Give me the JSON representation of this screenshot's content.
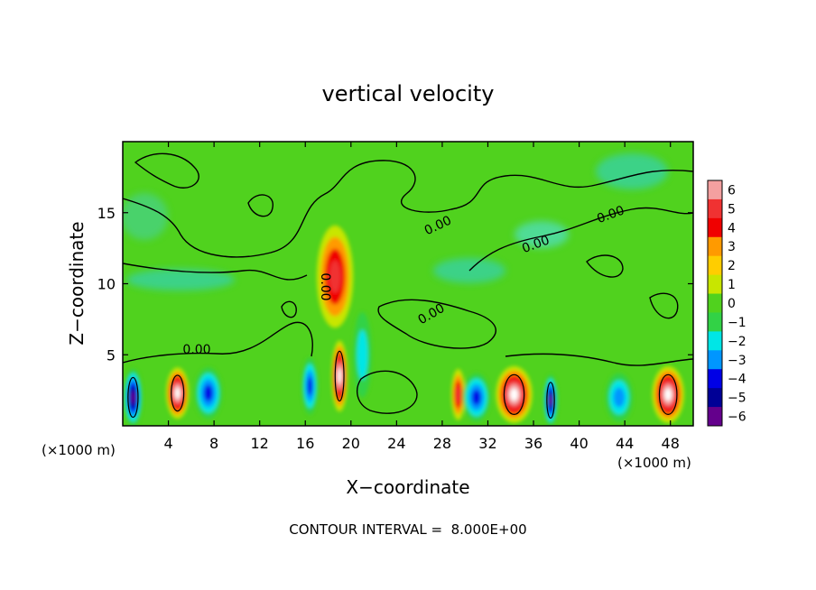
{
  "chart_data": {
    "type": "heatmap",
    "title": "vertical velocity",
    "xlabel": "X−coordinate",
    "ylabel": "Z−coordinate",
    "x_unit_left": "(×1000 m)",
    "x_unit_right": "(×1000 m)",
    "xlim": [
      0,
      50
    ],
    "ylim": [
      0,
      20
    ],
    "x_ticks": [
      4,
      8,
      12,
      16,
      20,
      24,
      28,
      32,
      36,
      40,
      44,
      48
    ],
    "y_ticks": [
      5,
      10,
      15
    ],
    "colorbar": {
      "levels": [
        6,
        5,
        4,
        3,
        2,
        1,
        0,
        -1,
        -2,
        -3,
        -4,
        -5,
        -6
      ],
      "labels": [
        "6",
        "5",
        "4",
        "3",
        "2",
        "1",
        "0",
        "−1",
        "−2",
        "−3",
        "−4",
        "−5",
        "−6"
      ],
      "colors": [
        "#f4a0a0",
        "#f03232",
        "#f00000",
        "#ff9a00",
        "#ffcd00",
        "#c8e600",
        "#50d21e",
        "#32d246",
        "#00e6e6",
        "#0096ff",
        "#0000e6",
        "#000096",
        "#64008c"
      ]
    },
    "contour_labels": [
      "0.00",
      "0.00",
      "0.00",
      "0.00",
      "0.00",
      "0.00"
    ],
    "contour_interval_text": "CONTOUR INTERVAL =  8.000E+00",
    "features": [
      {
        "kind": "updraft",
        "x": 19,
        "z": 3.5,
        "rx": 0.7,
        "rz": 2.5,
        "value": 6
      },
      {
        "kind": "updraft",
        "x": 18.6,
        "z": 10.5,
        "rx": 1.6,
        "rz": 3.6,
        "value": 4
      },
      {
        "kind": "updraft",
        "x": 4.8,
        "z": 2.3,
        "rx": 1.0,
        "rz": 1.8,
        "value": 6
      },
      {
        "kind": "updraft",
        "x": 34.3,
        "z": 2.2,
        "rx": 1.6,
        "rz": 2.0,
        "value": 6
      },
      {
        "kind": "updraft",
        "x": 47.8,
        "z": 2.2,
        "rx": 1.4,
        "rz": 2.0,
        "value": 6
      },
      {
        "kind": "updraft",
        "x": 29.4,
        "z": 2.2,
        "rx": 0.6,
        "rz": 1.8,
        "value": 4
      },
      {
        "kind": "downdraft",
        "x": 0.9,
        "z": 2.0,
        "rx": 0.8,
        "rz": 2.0,
        "value": -6
      },
      {
        "kind": "downdraft",
        "x": 37.5,
        "z": 1.8,
        "rx": 0.6,
        "rz": 1.8,
        "value": -6
      },
      {
        "kind": "downdraft",
        "x": 7.5,
        "z": 2.3,
        "rx": 1.2,
        "rz": 1.8,
        "value": -4
      },
      {
        "kind": "downdraft",
        "x": 16.4,
        "z": 2.8,
        "rx": 0.7,
        "rz": 2.0,
        "value": -4
      },
      {
        "kind": "downdraft",
        "x": 31.0,
        "z": 2.0,
        "rx": 1.2,
        "rz": 1.7,
        "value": -4
      },
      {
        "kind": "downdraft",
        "x": 43.5,
        "z": 2.0,
        "rx": 1.2,
        "rz": 1.7,
        "value": -3
      },
      {
        "kind": "downdraft",
        "x": 21.0,
        "z": 5.0,
        "rx": 0.8,
        "rz": 3.0,
        "value": -2
      }
    ]
  }
}
